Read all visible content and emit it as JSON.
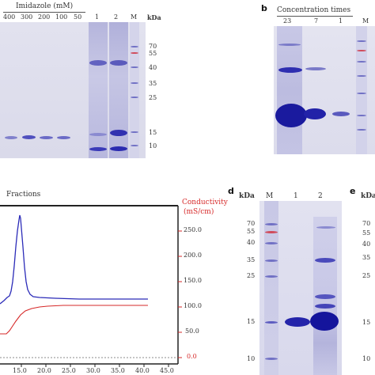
{
  "panel_a": {
    "imidazole_label": "Imidazole (mM)",
    "concentrations": [
      "400",
      "300",
      "200",
      "100",
      "50"
    ],
    "lane_numbers": [
      "1",
      "2"
    ],
    "marker_label": "M",
    "kda_label": "kDa",
    "markers": [
      "70",
      "55",
      "40",
      "35",
      "25",
      "15",
      "10"
    ]
  },
  "panel_b": {
    "letter": "b",
    "title": "Concentration times",
    "lanes": [
      "23",
      "7",
      "1",
      "M"
    ]
  },
  "panel_c": {
    "fractions_label": "Fractions",
    "conductivity_label": "Conductivity",
    "conductivity_unit": "(mS/cm)",
    "right_ticks": [
      "250.0",
      "200.0",
      "150.0",
      "100.0",
      "50.0",
      "0.0"
    ],
    "x_ticks": [
      "15.0",
      "20.0",
      "25.0",
      "30.0",
      "35.0",
      "40.0",
      "45.0"
    ],
    "colors": {
      "uv": "#2b2bb8",
      "conductivity": "#d62828"
    }
  },
  "panel_d": {
    "letter": "d",
    "kda_label": "kDa",
    "lanes": [
      "M",
      "1",
      "2"
    ],
    "markers": [
      "70",
      "55",
      "40",
      "35",
      "25",
      "15",
      "10"
    ]
  },
  "panel_e": {
    "letter": "e",
    "kda_label": "kDa",
    "markers": [
      "70",
      "55",
      "40",
      "35",
      "25",
      "15",
      "10"
    ]
  },
  "colors": {
    "gel_bg": "#dcdcee",
    "band": "#3a3ab8",
    "marker_band": "#6b6bc4",
    "red": "#d62828"
  }
}
